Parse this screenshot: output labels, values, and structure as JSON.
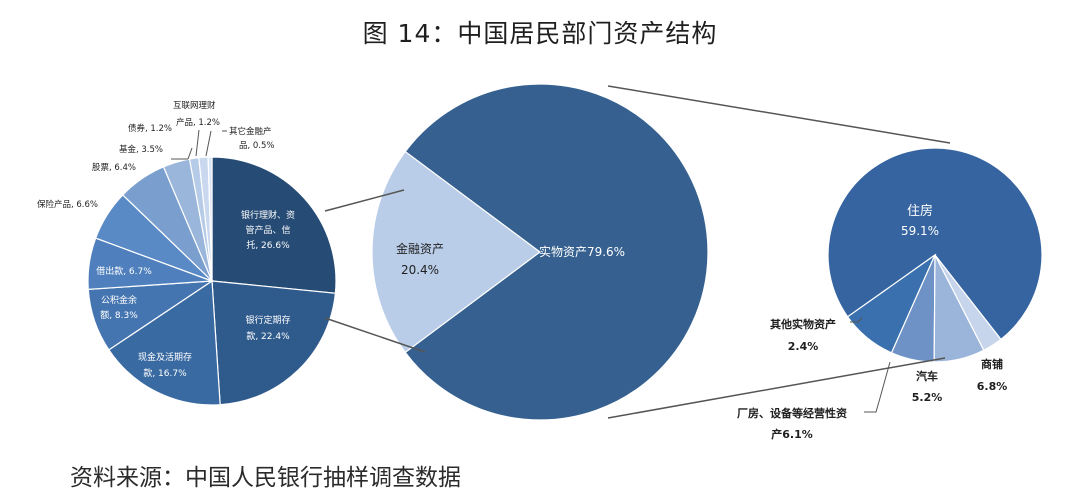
{
  "title": "图 14：中国居民部门资产结构",
  "source": "资料来源：中国人民银行抽样调查数据",
  "chart_data": [
    {
      "type": "pie",
      "slices": [
        {
          "label": "银行理财、资管产品、信托, 26.6%",
          "value": 26.6,
          "color": "#264b74"
        },
        {
          "label": "银行定期存款, 22.4%",
          "value": 22.4,
          "color": "#2f5a8c"
        },
        {
          "label": "现金及活期存款, 16.7%",
          "value": 16.7,
          "color": "#3a6aa2"
        },
        {
          "label": "公积金余额, 8.3%",
          "value": 8.3,
          "color": "#4575b0"
        },
        {
          "label": "借出款, 6.7%",
          "value": 6.7,
          "color": "#4f80bd"
        },
        {
          "label": "保险产品, 6.6%",
          "value": 6.6,
          "color": "#5a8ac6"
        },
        {
          "label": "股票, 6.4%",
          "value": 6.4,
          "color": "#7a9fcf"
        },
        {
          "label": "基金, 3.5%",
          "value": 3.5,
          "color": "#9ab6db"
        },
        {
          "label": "债券, 1.2%",
          "value": 1.2,
          "color": "#b6cbe7"
        },
        {
          "label": "互联网理财产品, 1.2%",
          "value": 1.2,
          "color": "#c9d8ee"
        },
        {
          "label": "其它金融产品, 0.5%",
          "value": 0.5,
          "color": "#dbe5f4"
        }
      ]
    },
    {
      "type": "pie",
      "slices": [
        {
          "label": "金融资产 20.4%",
          "value": 20.4,
          "color": "#b9cde8"
        },
        {
          "label": "实物资产79.6%",
          "value": 79.6,
          "color": "#35608f"
        }
      ]
    },
    {
      "type": "pie",
      "slices": [
        {
          "label": "住房 59.1%",
          "value": 59.1,
          "color": "#3564a0"
        },
        {
          "label": "商铺 6.8%",
          "value": 6.8,
          "color": "#3a70ad"
        },
        {
          "label": "汽车 5.2%",
          "value": 5.2,
          "color": "#6f92c6"
        },
        {
          "label": "厂房、设备等经营性资产6.1%",
          "value": 6.1,
          "color": "#9bb4da"
        },
        {
          "label": "其他实物资产 2.4%",
          "value": 2.4,
          "color": "#c6d5ec"
        }
      ]
    }
  ],
  "labels": {
    "left": {
      "bank_wealth": [
        "银行理财、资",
        "管产品、信",
        "托, 26.6%"
      ],
      "time_deposit": [
        "银行定期存",
        "款, 22.4%"
      ],
      "cash": [
        "现金及活期存",
        "款, 16.7%"
      ],
      "housing_fund": [
        "公积金余",
        "额, 8.3%"
      ],
      "loan_out": "借出款, 6.7%",
      "insurance": "保险产品, 6.6%",
      "stock": "股票, 6.4%",
      "fund": "基金, 3.5%",
      "bond": "债券, 1.2%",
      "internet": [
        "互联网理财",
        "产品, 1.2%"
      ],
      "other_fin": [
        "其它金融产",
        "品, 0.5%"
      ]
    },
    "middle": {
      "fin_name": "金融资产",
      "fin_pct": "20.4%",
      "real": "实物资产79.6%"
    },
    "right": {
      "house_name": "住房",
      "house_pct": "59.1%",
      "other_name": "其他实物资产",
      "other_pct": "2.4%",
      "shop_name": "商铺",
      "shop_pct": "6.8%",
      "car_name": "汽车",
      "car_pct": "5.2%",
      "plant_name": "厂房、设备等经营性资",
      "plant_pct": "产6.1%"
    }
  }
}
